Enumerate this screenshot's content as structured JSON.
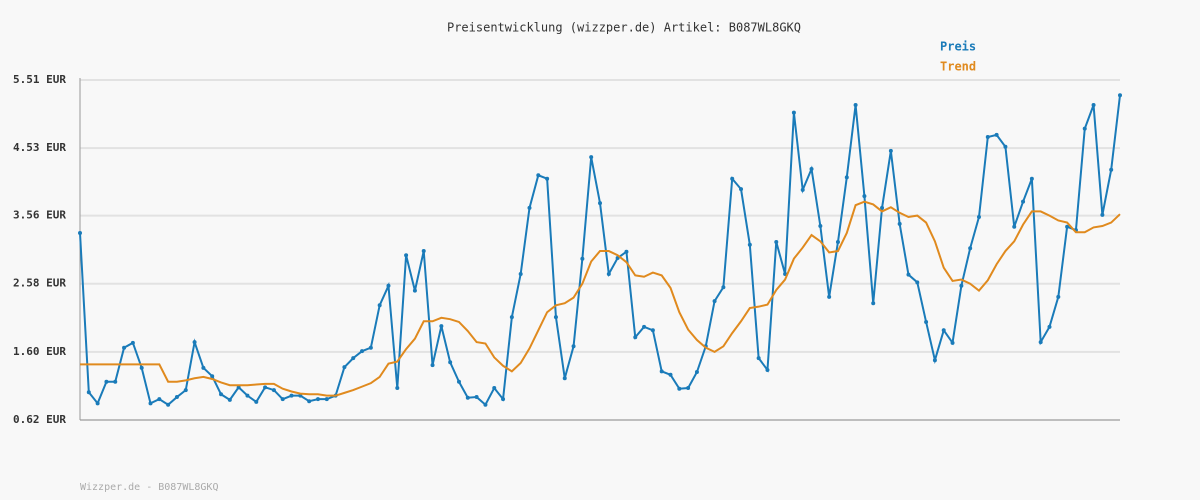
{
  "chart_data": {
    "type": "line",
    "title": "Preisentwicklung (wizzper.de) Artikel: B087WL8GKQ",
    "ylim": [
      0.62,
      5.51
    ],
    "yticks": [
      {
        "value": 0.62,
        "label": "0.62 EUR"
      },
      {
        "value": 1.6,
        "label": "1.60 EUR"
      },
      {
        "value": 2.58,
        "label": "2.58 EUR"
      },
      {
        "value": 3.56,
        "label": "3.56 EUR"
      },
      {
        "value": 4.53,
        "label": "4.53 EUR"
      },
      {
        "value": 5.51,
        "label": "5.51 EUR"
      }
    ],
    "grid": true,
    "legend": "top-right",
    "series": [
      {
        "name": "Preis",
        "color": "#1a7bb9",
        "markers": true,
        "values": [
          3.31,
          1.02,
          0.86,
          1.17,
          1.17,
          1.66,
          1.73,
          1.37,
          0.86,
          0.92,
          0.84,
          0.95,
          1.05,
          1.74,
          1.37,
          1.25,
          0.99,
          0.91,
          1.09,
          0.97,
          0.88,
          1.09,
          1.05,
          0.92,
          0.97,
          0.97,
          0.89,
          0.92,
          0.92,
          0.97,
          1.38,
          1.51,
          1.61,
          1.66,
          2.27,
          2.55,
          1.08,
          2.99,
          2.48,
          3.05,
          1.41,
          1.97,
          1.45,
          1.17,
          0.94,
          0.95,
          0.84,
          1.08,
          0.92,
          2.1,
          2.72,
          3.67,
          4.14,
          4.09,
          2.1,
          1.22,
          1.68,
          2.94,
          4.4,
          3.74,
          2.72,
          2.95,
          3.04,
          1.81,
          1.96,
          1.91,
          1.32,
          1.27,
          1.07,
          1.08,
          1.31,
          1.68,
          2.33,
          2.53,
          4.09,
          3.94,
          3.14,
          1.51,
          1.34,
          3.18,
          2.72,
          5.04,
          3.93,
          4.23,
          3.41,
          2.39,
          3.18,
          4.11,
          5.15,
          3.84,
          2.3,
          3.67,
          4.49,
          3.44,
          2.71,
          2.6,
          2.03,
          1.48,
          1.91,
          1.73,
          2.55,
          3.09,
          3.54,
          4.69,
          4.72,
          4.55,
          3.4,
          3.76,
          4.09,
          1.74,
          1.96,
          2.39,
          3.4,
          3.35,
          4.81,
          5.15,
          3.57,
          4.22,
          5.29
        ]
      },
      {
        "name": "Trend",
        "color": "#e08a1e",
        "markers": false,
        "values": [
          1.42,
          1.42,
          1.42,
          1.42,
          1.42,
          1.42,
          1.42,
          1.42,
          1.42,
          1.42,
          1.17,
          1.17,
          1.19,
          1.22,
          1.24,
          1.21,
          1.16,
          1.12,
          1.12,
          1.12,
          1.13,
          1.14,
          1.14,
          1.07,
          1.03,
          1.0,
          0.99,
          0.99,
          0.97,
          0.97,
          1.01,
          1.05,
          1.1,
          1.15,
          1.24,
          1.43,
          1.46,
          1.64,
          1.79,
          2.04,
          2.04,
          2.09,
          2.07,
          2.03,
          1.9,
          1.74,
          1.72,
          1.52,
          1.4,
          1.32,
          1.44,
          1.65,
          1.91,
          2.17,
          2.27,
          2.3,
          2.38,
          2.58,
          2.9,
          3.05,
          3.05,
          2.99,
          2.89,
          2.7,
          2.68,
          2.74,
          2.7,
          2.52,
          2.17,
          1.92,
          1.77,
          1.66,
          1.6,
          1.68,
          1.87,
          2.04,
          2.23,
          2.25,
          2.28,
          2.49,
          2.64,
          2.94,
          3.1,
          3.28,
          3.19,
          3.03,
          3.05,
          3.31,
          3.71,
          3.76,
          3.72,
          3.62,
          3.68,
          3.6,
          3.54,
          3.56,
          3.46,
          3.19,
          2.81,
          2.62,
          2.64,
          2.58,
          2.48,
          2.63,
          2.86,
          3.05,
          3.19,
          3.43,
          3.62,
          3.62,
          3.56,
          3.49,
          3.46,
          3.32,
          3.32,
          3.39,
          3.41,
          3.46,
          3.58
        ]
      }
    ],
    "footer": "Wizzper.de - B087WL8GKQ"
  }
}
